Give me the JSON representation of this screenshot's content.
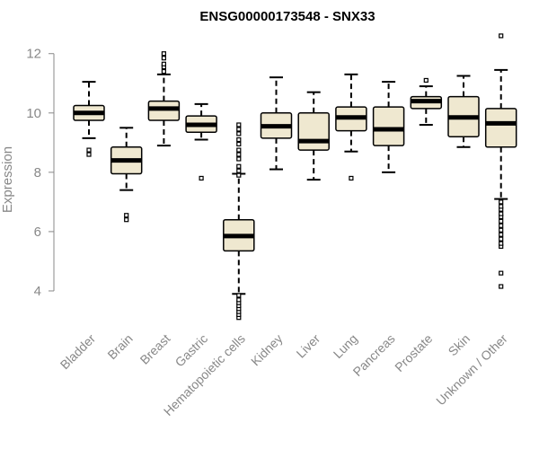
{
  "chart_data": {
    "type": "box",
    "title": "ENSG00000173548 - SNX33",
    "xlabel": "",
    "ylabel": "Expression",
    "ylim": [
      3,
      12.9
    ],
    "yticks": [
      4,
      6,
      8,
      10,
      12
    ],
    "categories": [
      "Bladder",
      "Brain",
      "Breast",
      "Gastric",
      "Hematopoietic cells",
      "Kidney",
      "Liver",
      "Lung",
      "Pancreas",
      "Prostate",
      "Skin",
      "Unknown / Other"
    ],
    "box_fill": "#efe8d0",
    "box_stroke": "#000000",
    "series": [
      {
        "category": "Bladder",
        "whisker_low": 9.15,
        "q1": 9.75,
        "median": 10.0,
        "q3": 10.25,
        "whisker_high": 11.05,
        "outliers": [
          8.6,
          8.75
        ]
      },
      {
        "category": "Brain",
        "whisker_low": 7.4,
        "q1": 7.95,
        "median": 8.4,
        "q3": 8.85,
        "whisker_high": 9.5,
        "outliers": [
          6.4,
          6.55
        ]
      },
      {
        "category": "Breast",
        "whisker_low": 8.9,
        "q1": 9.75,
        "median": 10.15,
        "q3": 10.4,
        "whisker_high": 11.3,
        "outliers": [
          11.4,
          11.55,
          11.65,
          11.85,
          12.0
        ]
      },
      {
        "category": "Gastric",
        "whisker_low": 9.1,
        "q1": 9.35,
        "median": 9.6,
        "q3": 9.9,
        "whisker_high": 10.3,
        "outliers": [
          7.8
        ]
      },
      {
        "category": "Hematopoietic cells",
        "whisker_low": 3.9,
        "q1": 5.35,
        "median": 5.85,
        "q3": 6.4,
        "whisker_high": 7.95,
        "outliers": [
          3.1,
          3.2,
          3.3,
          3.4,
          3.5,
          3.6,
          3.7,
          3.85,
          7.9,
          8.05,
          8.2,
          8.45,
          8.6,
          8.75,
          8.95,
          9.1,
          9.3,
          9.45,
          9.6
        ]
      },
      {
        "category": "Kidney",
        "whisker_low": 8.1,
        "q1": 9.15,
        "median": 9.55,
        "q3": 10.0,
        "whisker_high": 11.2,
        "outliers": []
      },
      {
        "category": "Liver",
        "whisker_low": 7.75,
        "q1": 8.75,
        "median": 9.05,
        "q3": 10.0,
        "whisker_high": 10.7,
        "outliers": []
      },
      {
        "category": "Lung",
        "whisker_low": 8.7,
        "q1": 9.4,
        "median": 9.85,
        "q3": 10.2,
        "whisker_high": 11.3,
        "outliers": [
          7.8
        ]
      },
      {
        "category": "Pancreas",
        "whisker_low": 8.0,
        "q1": 8.9,
        "median": 9.45,
        "q3": 10.2,
        "whisker_high": 11.05,
        "outliers": []
      },
      {
        "category": "Prostate",
        "whisker_low": 9.6,
        "q1": 10.15,
        "median": 10.4,
        "q3": 10.55,
        "whisker_high": 10.9,
        "outliers": [
          11.1
        ]
      },
      {
        "category": "Skin",
        "whisker_low": 8.85,
        "q1": 9.2,
        "median": 9.85,
        "q3": 10.55,
        "whisker_high": 11.25,
        "outliers": []
      },
      {
        "category": "Unknown / Other",
        "whisker_low": 7.1,
        "q1": 8.85,
        "median": 9.65,
        "q3": 10.15,
        "whisker_high": 11.45,
        "outliers": [
          4.15,
          4.6,
          5.5,
          5.6,
          5.75,
          5.9,
          6.05,
          6.2,
          6.35,
          6.5,
          6.6,
          6.75,
          6.85,
          7.0,
          12.6
        ]
      }
    ]
  }
}
